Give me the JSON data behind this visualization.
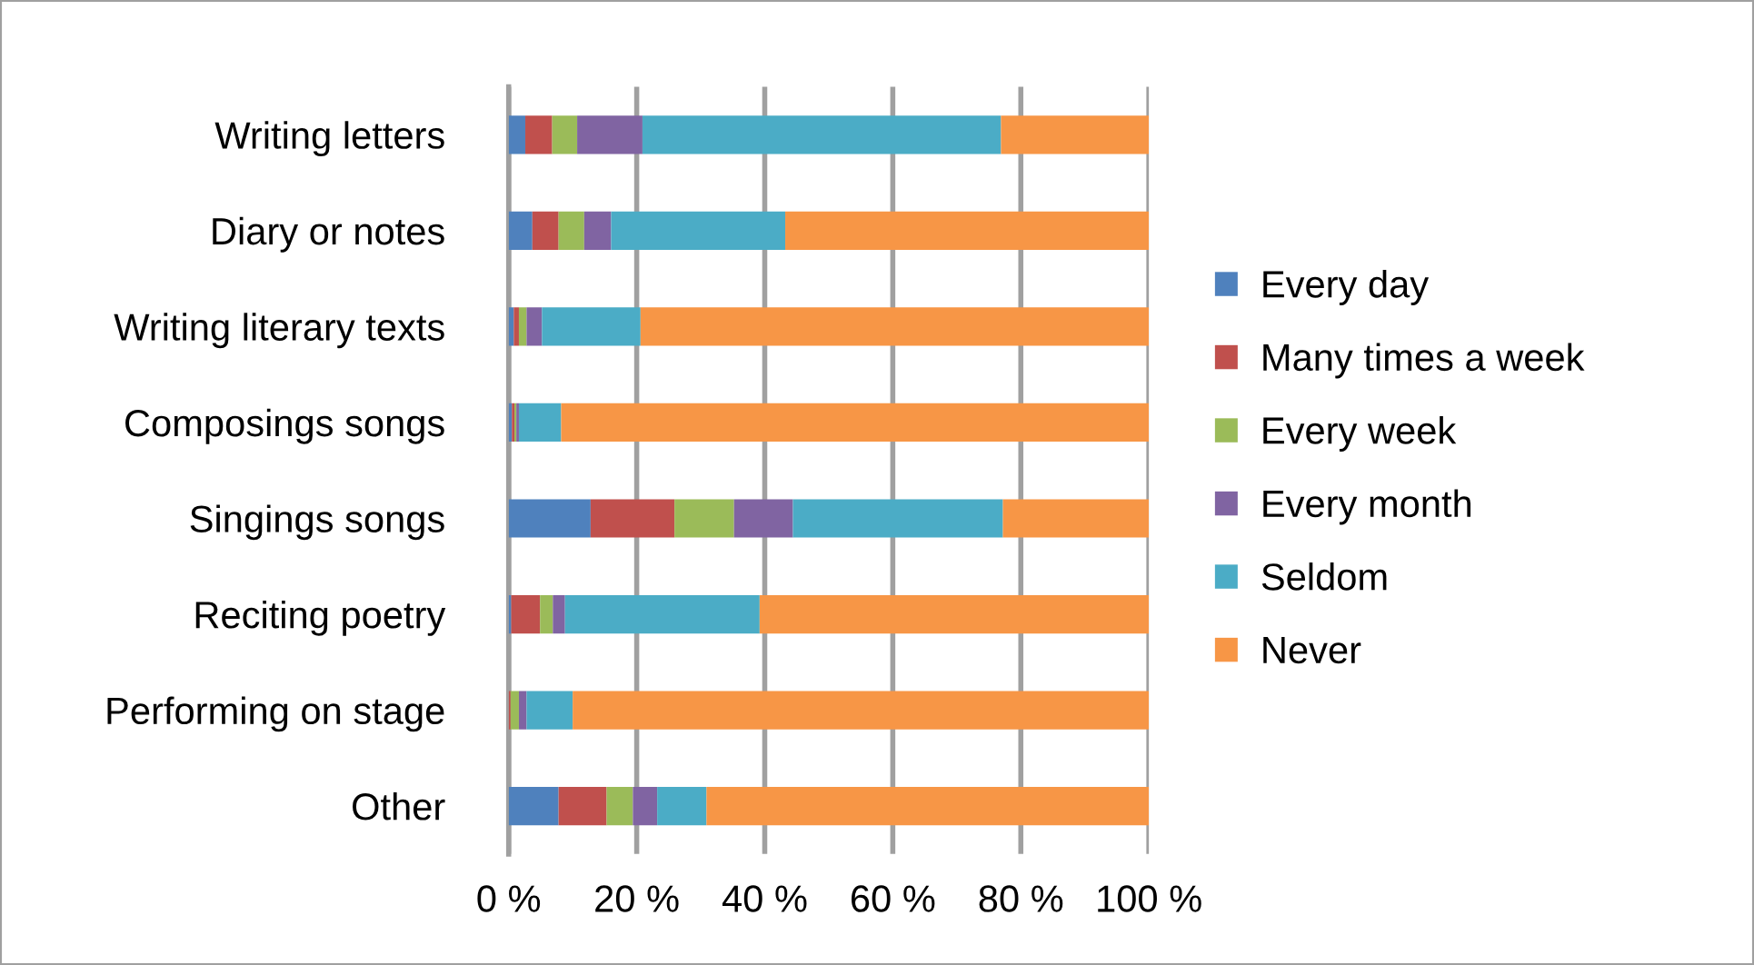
{
  "chart_data": {
    "type": "bar",
    "orientation": "horizontal",
    "stacked": true,
    "categories": [
      "Writing letters",
      "Diary or notes",
      "Writing literary texts",
      "Composings songs",
      "Singings songs",
      "Reciting poetry",
      "Performing on stage",
      "Other"
    ],
    "series": [
      {
        "name": "Every day",
        "color": "#4f81bd",
        "values": [
          2.6,
          3.7,
          0.8,
          0.5,
          12.8,
          0.4,
          0,
          7.8
        ]
      },
      {
        "name": "Many times a week",
        "color": "#c0504d",
        "values": [
          4.2,
          4.1,
          0.8,
          0.4,
          13.1,
          4.5,
          0.3,
          7.5
        ]
      },
      {
        "name": "Every week",
        "color": "#9bbb59",
        "values": [
          3.9,
          4.0,
          1.2,
          0.3,
          9.3,
          2.0,
          1.3,
          4.1
        ]
      },
      {
        "name": "Every month",
        "color": "#8064a2",
        "values": [
          10.2,
          4.2,
          2.4,
          0.4,
          9.2,
          1.9,
          1.2,
          3.8
        ]
      },
      {
        "name": "Seldom",
        "color": "#4bacc6",
        "values": [
          56.0,
          27.2,
          15.4,
          6.6,
          32.8,
          30.4,
          7.2,
          7.7
        ]
      },
      {
        "name": "Never",
        "color": "#f79646",
        "values": [
          23.1,
          56.8,
          79.4,
          91.8,
          22.8,
          60.8,
          90.0,
          69.1
        ]
      }
    ],
    "xlim": [
      0,
      100
    ],
    "xticks": [
      {
        "value": 0,
        "label": "0 %"
      },
      {
        "value": 20,
        "label": "20 %"
      },
      {
        "value": 40,
        "label": "40 %"
      },
      {
        "value": 60,
        "label": "60 %"
      },
      {
        "value": 80,
        "label": "80 %"
      },
      {
        "value": 100,
        "label": "100 %"
      }
    ],
    "grid": "x",
    "legend": "right"
  }
}
